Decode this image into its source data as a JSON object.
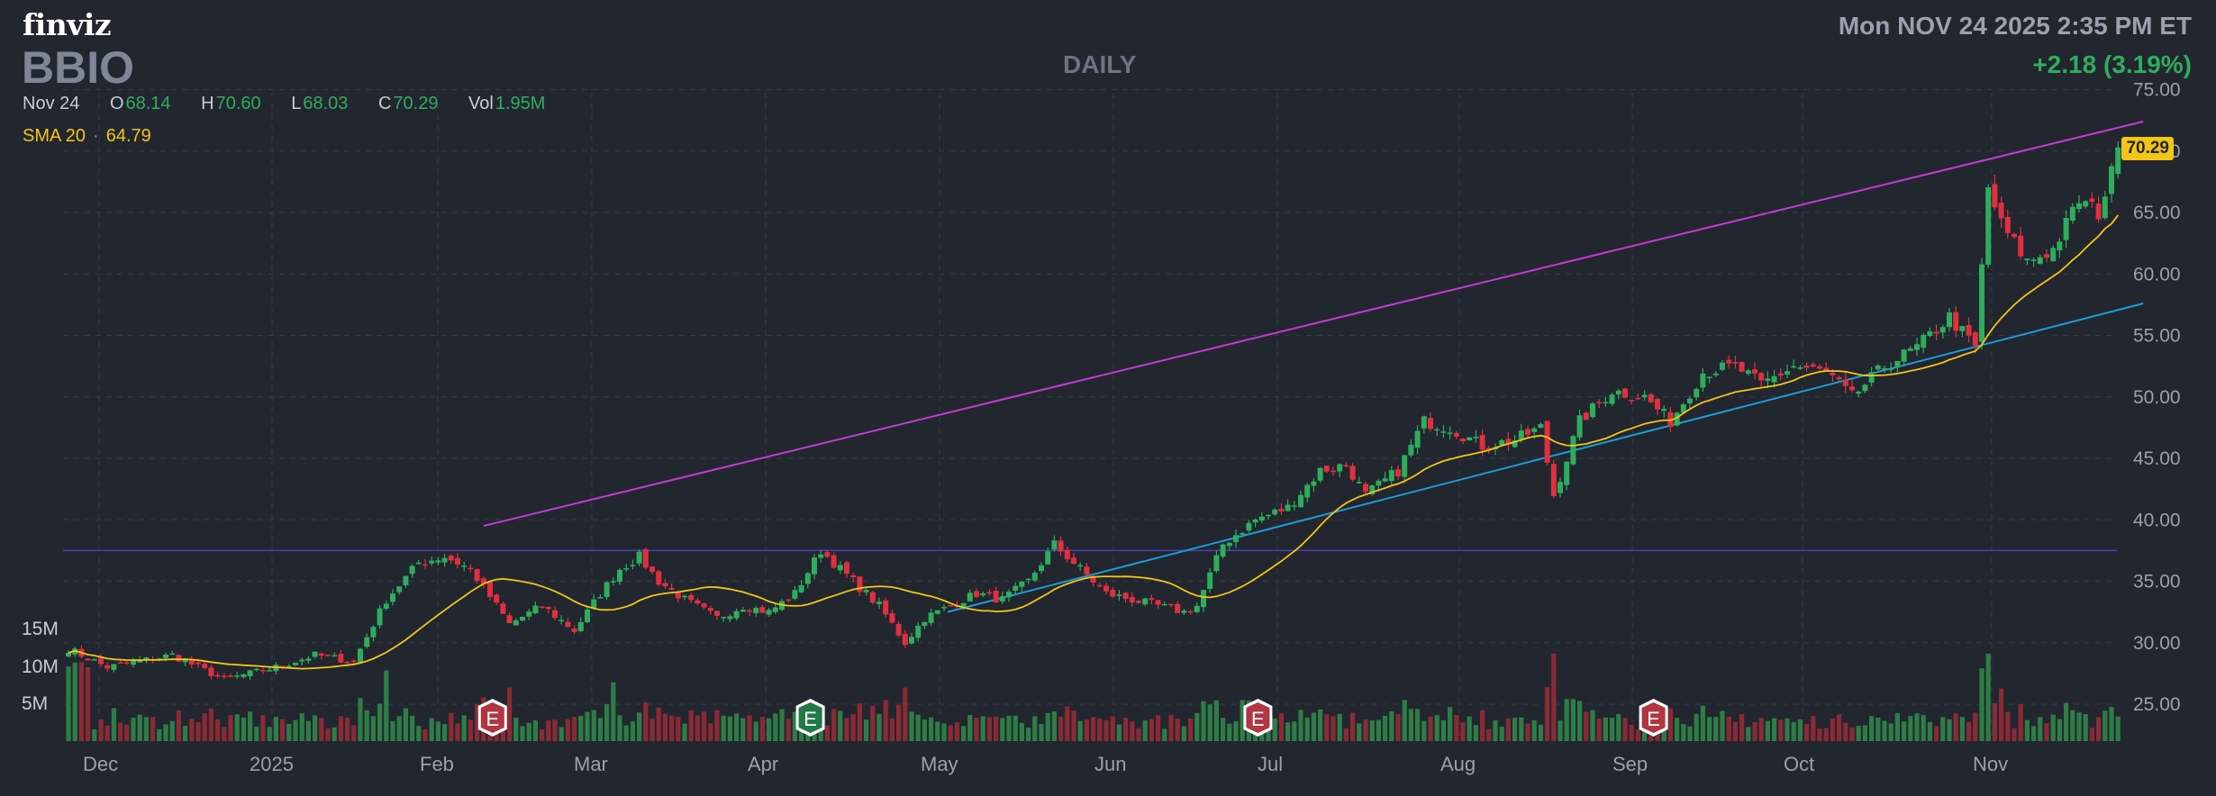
{
  "header": {
    "logo": "finviz",
    "ticker": "BBIO",
    "interval": "DAILY",
    "datetime": "Mon NOV 24 2025 2:35 PM ET",
    "change": "+2.18 (3.19%)"
  },
  "ohlc": {
    "date": "Nov 24",
    "open_label": "O",
    "open": "68.14",
    "high_label": "H",
    "high": "70.60",
    "low_label": "L",
    "low": "68.03",
    "close_label": "C",
    "close": "70.29",
    "vol_label": "Vol",
    "vol": "1.95M"
  },
  "sma": {
    "label": "SMA 20",
    "value": "64.79"
  },
  "last_price": "70.29",
  "colors": {
    "background": "#22262f",
    "up": "#2ead5c",
    "down": "#e0303f",
    "sma": "#f2c517",
    "upper_trend": "#c23bd4",
    "lower_trend": "#1e9bd7",
    "horizontal_line": "#4b3fb5"
  },
  "chart_data": {
    "type": "candlestick",
    "x_ticks": [
      "Dec",
      "2025",
      "Feb",
      "Mar",
      "Apr",
      "May",
      "Jun",
      "Jul",
      "Aug",
      "Sep",
      "Oct",
      "Nov"
    ],
    "y_ticks": [
      "75.00",
      "70.00",
      "65.00",
      "60.00",
      "55.00",
      "50.00",
      "45.00",
      "40.00",
      "35.00",
      "30.00",
      "25.00"
    ],
    "ylim": [
      22,
      76
    ],
    "volume_ticks": [
      "15M",
      "10M",
      "5M"
    ],
    "volume_ylim": [
      0,
      15
    ],
    "earnings_markers": [
      {
        "label": "E",
        "date": "Feb 20",
        "type": "past"
      },
      {
        "label": "E",
        "date": "Apr 30",
        "type": "beat"
      },
      {
        "label": "E",
        "date": "Aug 5",
        "type": "past"
      },
      {
        "label": "E",
        "date": "Oct 29",
        "type": "past"
      }
    ],
    "horizontal_line": {
      "value": 37.5
    },
    "trend_upper": {
      "start": [
        "Feb 20",
        39.5
      ],
      "end": [
        "Nov 24",
        72.4
      ]
    },
    "trend_lower": {
      "start": [
        "May 30",
        32.5
      ],
      "end": [
        "Nov 24",
        57.6
      ]
    },
    "keypoints": [
      [
        0,
        29.5
      ],
      [
        6,
        28
      ],
      [
        16,
        29
      ],
      [
        24,
        27
      ],
      [
        32,
        28
      ],
      [
        38,
        29
      ],
      [
        44,
        28.5
      ],
      [
        49,
        33.5
      ],
      [
        54,
        36.5
      ],
      [
        58,
        37
      ],
      [
        62,
        36
      ],
      [
        68,
        31.5
      ],
      [
        73,
        33
      ],
      [
        78,
        31
      ],
      [
        82,
        34
      ],
      [
        85,
        36
      ],
      [
        88,
        37
      ],
      [
        91,
        35
      ],
      [
        95,
        33.5
      ],
      [
        100,
        32
      ],
      [
        104,
        33
      ],
      [
        108,
        32.5
      ],
      [
        112,
        34
      ],
      [
        116,
        37.5
      ],
      [
        121,
        35
      ],
      [
        125,
        33
      ],
      [
        129,
        30
      ],
      [
        132,
        32
      ],
      [
        136,
        33
      ],
      [
        140,
        34
      ],
      [
        144,
        33.5
      ],
      [
        148,
        35
      ],
      [
        152,
        38
      ],
      [
        156,
        36
      ],
      [
        160,
        34
      ],
      [
        164,
        33.5
      ],
      [
        168,
        33
      ],
      [
        172,
        32.5
      ],
      [
        174,
        33
      ],
      [
        178,
        38
      ],
      [
        183,
        40
      ],
      [
        188,
        41
      ],
      [
        193,
        44
      ],
      [
        197,
        44.5
      ],
      [
        200,
        42
      ],
      [
        205,
        44
      ],
      [
        209,
        48
      ],
      [
        213,
        47.5
      ],
      [
        218,
        46
      ],
      [
        223,
        46.5
      ],
      [
        227,
        47.5
      ],
      [
        229,
        42
      ],
      [
        233,
        48
      ],
      [
        238,
        50.5
      ],
      [
        243,
        50
      ],
      [
        247,
        48
      ],
      [
        252,
        52
      ],
      [
        257,
        52.5
      ],
      [
        261,
        51
      ],
      [
        266,
        52.5
      ],
      [
        271,
        52
      ],
      [
        275,
        50
      ],
      [
        280,
        52.5
      ],
      [
        285,
        54
      ],
      [
        290,
        56.5
      ],
      [
        294,
        54
      ],
      [
        296,
        67
      ],
      [
        298,
        64
      ],
      [
        302,
        61
      ],
      [
        306,
        62
      ],
      [
        310,
        66
      ],
      [
        313,
        65
      ],
      [
        315,
        68.14
      ],
      [
        316,
        70.29
      ]
    ]
  }
}
